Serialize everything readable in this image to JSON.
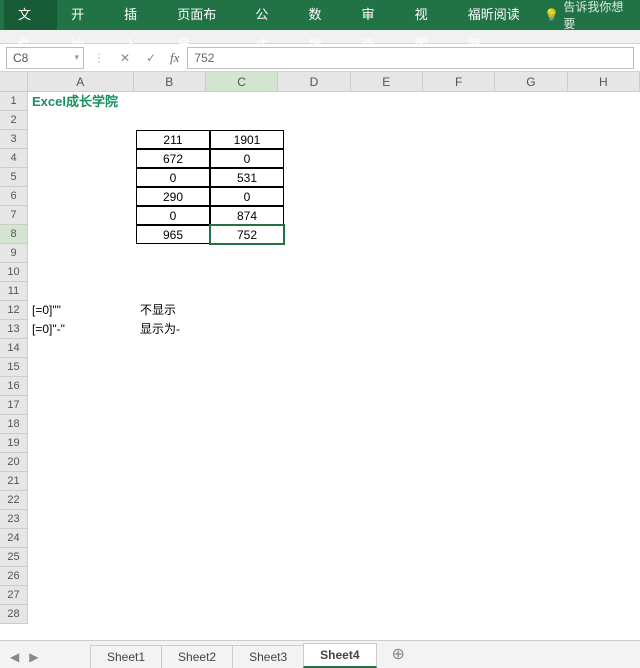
{
  "ribbon": {
    "tabs": [
      "文件",
      "开始",
      "插入",
      "页面布局",
      "公式",
      "数据",
      "审阅",
      "视图",
      "福昕阅读器"
    ],
    "tell_me": "告诉我你想要"
  },
  "formula": {
    "namebox": "C8",
    "cancel": "✕",
    "enter": "✓",
    "fx": "fx",
    "value": "752"
  },
  "cols": {
    "labels": [
      "A",
      "B",
      "C",
      "D",
      "E",
      "F",
      "G",
      "H"
    ],
    "widths": [
      108,
      74,
      74,
      74,
      74,
      74,
      74,
      74
    ],
    "selected": "C"
  },
  "rows": {
    "count": 28,
    "height": 19,
    "selected": 8
  },
  "content": {
    "a1": {
      "text": "Excel成长学院",
      "color": "#1a8f5f",
      "bold": true,
      "size": 13
    },
    "table": {
      "startRow": 3,
      "cols": [
        "B",
        "C"
      ],
      "rows": [
        [
          "211",
          "1901"
        ],
        [
          "672",
          "0"
        ],
        [
          "0",
          "531"
        ],
        [
          "290",
          "0"
        ],
        [
          "0",
          "874"
        ],
        [
          "965",
          "752"
        ]
      ]
    },
    "a12": "[=0]\"\"",
    "b12": "不显示",
    "a13": "[=0]\"-\"",
    "b13": "显示为-"
  },
  "active_cell": "C8",
  "sheets": {
    "tabs": [
      "Sheet1",
      "Sheet2",
      "Sheet3",
      "Sheet4"
    ],
    "active": "Sheet4",
    "add": "⊕"
  },
  "colors": {
    "brand": "#217346",
    "header_bg": "#e6e6e6",
    "sel_header": "#d3e5d1"
  }
}
